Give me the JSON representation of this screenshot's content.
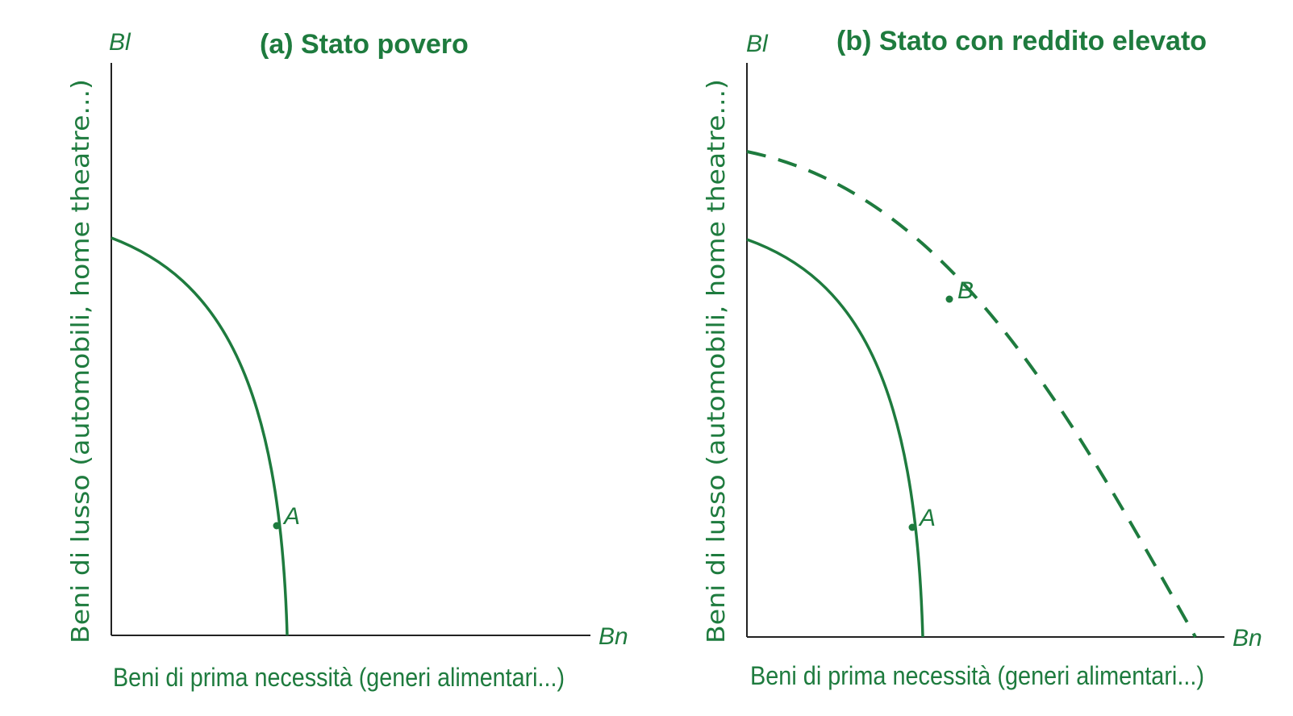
{
  "colors": {
    "curve": "#1e7b3e",
    "axis": "#222222",
    "text": "#1e7b3e"
  },
  "panels": [
    {
      "title": "(a) Stato povero",
      "y_axis_letter": "Bl",
      "x_axis_letter": "Bn",
      "y_axis_label": "Beni di lusso (automobili, home theatre...)",
      "x_axis_label": "Beni di prima necessità (generi alimentari...)",
      "curves": [
        {
          "style": "solid"
        }
      ],
      "points": [
        {
          "label": "A"
        }
      ]
    },
    {
      "title": "(b) Stato con reddito elevato",
      "y_axis_letter": "Bl",
      "x_axis_letter": "Bn",
      "y_axis_label": "Beni di lusso (automobili, home theatre...)",
      "x_axis_label": "Beni di prima necessità (generi alimentari...)",
      "curves": [
        {
          "style": "solid"
        },
        {
          "style": "dashed"
        }
      ],
      "points": [
        {
          "label": "A"
        },
        {
          "label": "B"
        }
      ]
    }
  ]
}
